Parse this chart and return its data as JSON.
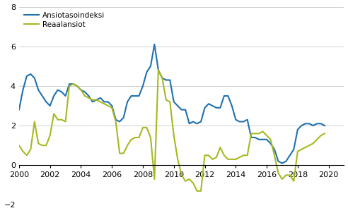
{
  "ansiotaso": [
    2.8,
    3.8,
    4.5,
    4.6,
    4.4,
    3.8,
    3.5,
    3.2,
    3.0,
    3.5,
    3.8,
    3.7,
    3.5,
    4.1,
    4.1,
    4.0,
    3.8,
    3.7,
    3.5,
    3.2,
    3.3,
    3.4,
    3.2,
    3.2,
    3.0,
    2.3,
    2.2,
    2.4,
    3.2,
    3.5,
    3.5,
    3.5,
    4.0,
    4.7,
    5.0,
    6.1,
    4.8,
    4.4,
    4.3,
    4.3,
    3.2,
    3.0,
    2.8,
    2.8,
    2.1,
    2.2,
    2.1,
    2.2,
    2.9,
    3.1,
    3.0,
    2.9,
    2.9,
    3.5,
    3.5,
    3.0,
    2.3,
    2.2,
    2.2,
    2.3,
    1.4,
    1.4,
    1.3,
    1.3,
    1.3,
    1.1,
    0.8,
    0.2,
    0.1,
    0.2,
    0.5,
    0.8,
    1.8,
    2.0,
    2.1,
    2.1,
    2.0,
    2.1,
    2.1,
    2.0
  ],
  "reaalansiot": [
    1.0,
    0.7,
    0.5,
    0.8,
    2.2,
    1.1,
    1.0,
    1.0,
    1.5,
    2.6,
    2.3,
    2.3,
    2.2,
    4.0,
    4.1,
    4.0,
    3.8,
    3.5,
    3.4,
    3.3,
    3.3,
    3.2,
    3.1,
    3.0,
    2.9,
    2.2,
    0.6,
    0.6,
    1.0,
    1.3,
    1.4,
    1.4,
    1.9,
    1.9,
    1.4,
    -0.7,
    4.8,
    4.4,
    3.3,
    3.2,
    1.5,
    0.3,
    -0.5,
    -0.8,
    -0.7,
    -0.9,
    -1.3,
    -1.3,
    0.5,
    0.5,
    0.3,
    0.4,
    0.9,
    0.5,
    0.3,
    0.3,
    0.3,
    0.4,
    0.5,
    0.5,
    1.6,
    1.6,
    1.6,
    1.7,
    1.5,
    1.3,
    0.5,
    -0.4,
    -0.7,
    -0.5,
    -0.5,
    -0.8,
    0.7,
    0.8,
    0.9,
    1.0,
    1.1,
    1.3,
    1.5,
    1.6
  ],
  "ansiotaso_color": "#2070b0",
  "reaalansiot_color": "#a8b820",
  "xlim_start": 2000.0,
  "xlim_end": 2021.0,
  "ylim": [
    -2,
    8
  ],
  "yticks": [
    -2,
    0,
    2,
    4,
    6,
    8
  ],
  "xticks": [
    2000,
    2002,
    2004,
    2006,
    2008,
    2010,
    2012,
    2014,
    2016,
    2018,
    2020
  ],
  "legend_label1": "Ansiotasoindeksi",
  "legend_label2": "Reaalansiot",
  "line_width": 1.5,
  "grid_color": "#c8c8c8",
  "bg_color": "#ffffff"
}
